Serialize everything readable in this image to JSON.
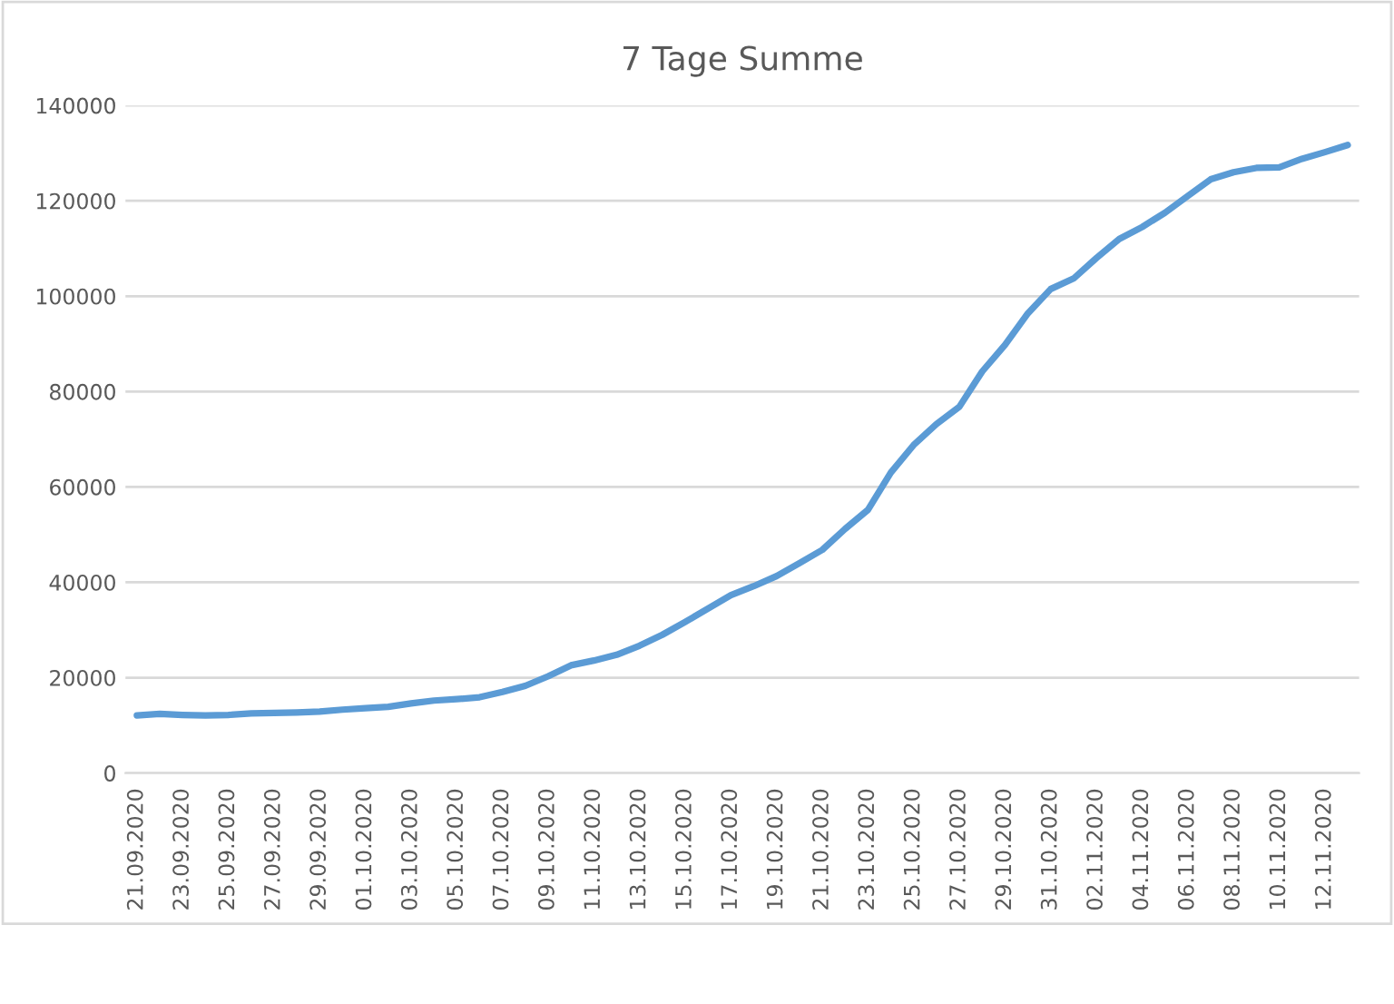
{
  "chart_data": {
    "type": "line",
    "title": "7 Tage Summe",
    "categories": [
      "21.09.2020",
      null,
      "23.09.2020",
      null,
      "25.09.2020",
      null,
      "27.09.2020",
      null,
      "29.09.2020",
      null,
      "01.10.2020",
      null,
      "03.10.2020",
      null,
      "05.10.2020",
      null,
      "07.10.2020",
      null,
      "09.10.2020",
      null,
      "11.10.2020",
      null,
      "13.10.2020",
      null,
      "15.10.2020",
      null,
      "17.10.2020",
      null,
      "19.10.2020",
      null,
      "21.10.2020",
      null,
      "23.10.2020",
      null,
      "25.10.2020",
      null,
      "27.10.2020",
      null,
      "29.10.2020",
      null,
      "31.10.2020",
      null,
      "02.11.2020",
      null,
      "04.11.2020",
      null,
      "06.11.2020",
      null,
      "08.11.2020",
      null,
      "10.11.2020",
      null,
      "12.11.2020",
      null
    ],
    "series": [
      {
        "color": "#5b9bd5",
        "values": [
          12100,
          12400,
          12200,
          12100,
          12200,
          12500,
          12600,
          12700,
          12900,
          13300,
          13600,
          13900,
          14600,
          15200,
          15500,
          15900,
          17000,
          18300,
          20300,
          22600,
          23600,
          24800,
          26700,
          29000,
          31700,
          34500,
          37300,
          39200,
          41300,
          44000,
          46800,
          51200,
          55200,
          63000,
          68800,
          73200,
          76800,
          84200,
          89800,
          96400,
          101500,
          103700,
          108000,
          112000,
          114500,
          117500,
          121000,
          124500,
          126000,
          126900,
          127000,
          128800,
          130200,
          131700
        ]
      }
    ],
    "ylim": [
      0,
      140000
    ],
    "yticks": [
      0,
      20000,
      40000,
      60000,
      80000,
      100000,
      120000,
      140000
    ],
    "grid": "y",
    "legend": false,
    "marker": "none",
    "line_style": "solid"
  }
}
